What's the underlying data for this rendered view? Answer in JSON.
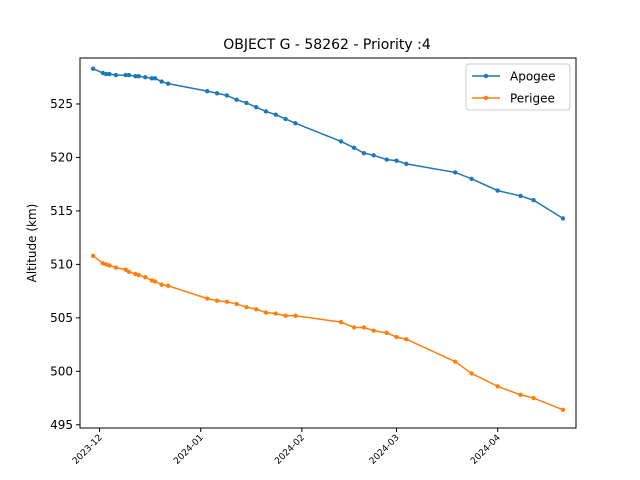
{
  "chart_data": {
    "type": "line",
    "title": "OBJECT G - 58262 - Priority :4",
    "xlabel": "",
    "ylabel": "Altitude (km)",
    "xlim": [
      "2023-11-25",
      "2024-04-25"
    ],
    "ylim": [
      494.7,
      529.3
    ],
    "x_ticks": [
      "2023-12",
      "2024-01",
      "2024-02",
      "2024-03",
      "2024-04"
    ],
    "y_ticks": [
      495,
      500,
      505,
      510,
      515,
      520,
      525
    ],
    "grid": false,
    "legend_position": "top-right",
    "series": [
      {
        "name": "Apogee",
        "color": "#1f77b4",
        "points": [
          [
            "2023-11-29",
            528.3
          ],
          [
            "2023-12-02",
            527.9
          ],
          [
            "2023-12-03",
            527.8
          ],
          [
            "2023-12-04",
            527.8
          ],
          [
            "2023-12-06",
            527.7
          ],
          [
            "2023-12-09",
            527.7
          ],
          [
            "2023-12-10",
            527.7
          ],
          [
            "2023-12-12",
            527.6
          ],
          [
            "2023-12-13",
            527.6
          ],
          [
            "2023-12-15",
            527.5
          ],
          [
            "2023-12-17",
            527.4
          ],
          [
            "2023-12-18",
            527.4
          ],
          [
            "2023-12-20",
            527.1
          ],
          [
            "2023-12-22",
            526.9
          ],
          [
            "2024-01-03",
            526.2
          ],
          [
            "2024-01-06",
            526.0
          ],
          [
            "2024-01-09",
            525.8
          ],
          [
            "2024-01-12",
            525.4
          ],
          [
            "2024-01-15",
            525.1
          ],
          [
            "2024-01-18",
            524.7
          ],
          [
            "2024-01-21",
            524.3
          ],
          [
            "2024-01-24",
            524.0
          ],
          [
            "2024-01-27",
            523.6
          ],
          [
            "2024-01-30",
            523.2
          ],
          [
            "2024-02-13",
            521.5
          ],
          [
            "2024-02-17",
            520.9
          ],
          [
            "2024-02-20",
            520.4
          ],
          [
            "2024-02-23",
            520.2
          ],
          [
            "2024-02-27",
            519.8
          ],
          [
            "2024-03-01",
            519.7
          ],
          [
            "2024-03-04",
            519.4
          ],
          [
            "2024-03-19",
            518.6
          ],
          [
            "2024-03-24",
            518.0
          ],
          [
            "2024-04-01",
            516.9
          ],
          [
            "2024-04-08",
            516.4
          ],
          [
            "2024-04-12",
            516.0
          ],
          [
            "2024-04-21",
            514.3
          ]
        ]
      },
      {
        "name": "Perigee",
        "color": "#ff7f0e",
        "points": [
          [
            "2023-11-29",
            510.8
          ],
          [
            "2023-12-02",
            510.1
          ],
          [
            "2023-12-03",
            510.0
          ],
          [
            "2023-12-04",
            509.9
          ],
          [
            "2023-12-06",
            509.7
          ],
          [
            "2023-12-09",
            509.5
          ],
          [
            "2023-12-10",
            509.3
          ],
          [
            "2023-12-12",
            509.1
          ],
          [
            "2023-12-13",
            509.0
          ],
          [
            "2023-12-15",
            508.8
          ],
          [
            "2023-12-17",
            508.5
          ],
          [
            "2023-12-18",
            508.4
          ],
          [
            "2023-12-20",
            508.1
          ],
          [
            "2023-12-22",
            508.0
          ],
          [
            "2024-01-03",
            506.8
          ],
          [
            "2024-01-06",
            506.6
          ],
          [
            "2024-01-09",
            506.5
          ],
          [
            "2024-01-12",
            506.3
          ],
          [
            "2024-01-15",
            506.0
          ],
          [
            "2024-01-18",
            505.8
          ],
          [
            "2024-01-21",
            505.5
          ],
          [
            "2024-01-24",
            505.4
          ],
          [
            "2024-01-27",
            505.2
          ],
          [
            "2024-01-30",
            505.2
          ],
          [
            "2024-02-13",
            504.6
          ],
          [
            "2024-02-17",
            504.1
          ],
          [
            "2024-02-20",
            504.1
          ],
          [
            "2024-02-23",
            503.8
          ],
          [
            "2024-02-27",
            503.6
          ],
          [
            "2024-03-01",
            503.2
          ],
          [
            "2024-03-04",
            503.0
          ],
          [
            "2024-03-19",
            500.9
          ],
          [
            "2024-03-24",
            499.8
          ],
          [
            "2024-04-01",
            498.6
          ],
          [
            "2024-04-08",
            497.8
          ],
          [
            "2024-04-12",
            497.5
          ],
          [
            "2024-04-21",
            496.4
          ]
        ]
      }
    ]
  }
}
